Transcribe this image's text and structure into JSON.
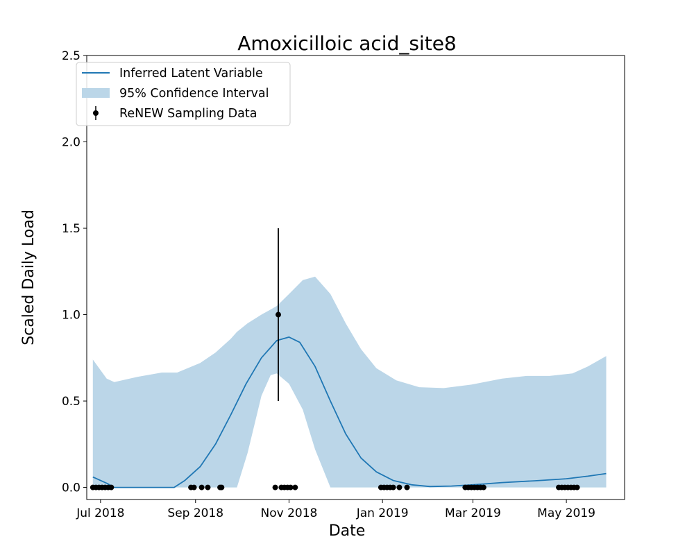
{
  "chart_data": {
    "type": "line",
    "title": "Amoxicilloic acid_site8",
    "xlabel": "Date",
    "ylabel": "Scaled Daily Load",
    "xlim": [
      "2018-06-22",
      "2019-06-08"
    ],
    "ylim": [
      -0.07,
      2.5
    ],
    "x_ticks": [
      {
        "date": "2018-07-01",
        "label": "Jul 2018"
      },
      {
        "date": "2018-09-01",
        "label": "Sep 2018"
      },
      {
        "date": "2018-11-01",
        "label": "Nov 2018"
      },
      {
        "date": "2019-01-01",
        "label": "Jan 2019"
      },
      {
        "date": "2019-03-01",
        "label": "Mar 2019"
      },
      {
        "date": "2019-05-01",
        "label": "May 2019"
      }
    ],
    "y_ticks": [
      {
        "value": 0.0,
        "label": "0.0"
      },
      {
        "value": 0.5,
        "label": "0.5"
      },
      {
        "value": 1.0,
        "label": "1.0"
      },
      {
        "value": 1.5,
        "label": "1.5"
      },
      {
        "value": 2.0,
        "label": "2.0"
      },
      {
        "value": 2.5,
        "label": "2.5"
      }
    ],
    "grid": false,
    "legend_position": "top-left",
    "legend": [
      {
        "label": "Inferred Latent Variable",
        "kind": "line"
      },
      {
        "label": "95% Confidence Interval",
        "kind": "band"
      },
      {
        "label": "ReNEW Sampling Data",
        "kind": "errorbar"
      }
    ],
    "colors": {
      "line": "#1f77b4",
      "band": "#bbd6e8",
      "points": "#000000"
    },
    "series": [
      {
        "name": "Inferred Latent Variable",
        "kind": "line",
        "points": [
          {
            "x": "2018-06-26",
            "y": 0.06
          },
          {
            "x": "2018-07-06",
            "y": 0.02
          },
          {
            "x": "2018-07-10",
            "y": 0.0
          },
          {
            "x": "2018-07-25",
            "y": 0.0
          },
          {
            "x": "2018-08-10",
            "y": 0.0
          },
          {
            "x": "2018-08-18",
            "y": 0.0
          },
          {
            "x": "2018-08-25",
            "y": 0.04
          },
          {
            "x": "2018-09-04",
            "y": 0.12
          },
          {
            "x": "2018-09-14",
            "y": 0.25
          },
          {
            "x": "2018-09-24",
            "y": 0.42
          },
          {
            "x": "2018-10-04",
            "y": 0.6
          },
          {
            "x": "2018-10-14",
            "y": 0.75
          },
          {
            "x": "2018-10-24",
            "y": 0.85
          },
          {
            "x": "2018-11-01",
            "y": 0.87
          },
          {
            "x": "2018-11-08",
            "y": 0.84
          },
          {
            "x": "2018-11-18",
            "y": 0.7
          },
          {
            "x": "2018-11-28",
            "y": 0.5
          },
          {
            "x": "2018-12-08",
            "y": 0.31
          },
          {
            "x": "2018-12-18",
            "y": 0.17
          },
          {
            "x": "2018-12-28",
            "y": 0.09
          },
          {
            "x": "2019-01-08",
            "y": 0.04
          },
          {
            "x": "2019-01-20",
            "y": 0.015
          },
          {
            "x": "2019-02-01",
            "y": 0.005
          },
          {
            "x": "2019-02-15",
            "y": 0.008
          },
          {
            "x": "2019-03-01",
            "y": 0.015
          },
          {
            "x": "2019-03-20",
            "y": 0.028
          },
          {
            "x": "2019-04-10",
            "y": 0.038
          },
          {
            "x": "2019-05-01",
            "y": 0.05
          },
          {
            "x": "2019-05-15",
            "y": 0.065
          },
          {
            "x": "2019-05-27",
            "y": 0.08
          }
        ]
      },
      {
        "name": "95% Confidence Interval",
        "kind": "band",
        "points": [
          {
            "x": "2018-06-26",
            "lower": 0.0,
            "upper": 0.74
          },
          {
            "x": "2018-07-05",
            "lower": 0.0,
            "upper": 0.63
          },
          {
            "x": "2018-07-10",
            "lower": 0.0,
            "upper": 0.61
          },
          {
            "x": "2018-07-25",
            "lower": 0.0,
            "upper": 0.64
          },
          {
            "x": "2018-08-10",
            "lower": 0.0,
            "upper": 0.665
          },
          {
            "x": "2018-08-20",
            "lower": 0.0,
            "upper": 0.665
          },
          {
            "x": "2018-09-04",
            "lower": 0.0,
            "upper": 0.72
          },
          {
            "x": "2018-09-14",
            "lower": 0.0,
            "upper": 0.78
          },
          {
            "x": "2018-09-24",
            "lower": 0.0,
            "upper": 0.86
          },
          {
            "x": "2018-09-28",
            "lower": 0.0,
            "upper": 0.9
          },
          {
            "x": "2018-10-05",
            "lower": 0.2,
            "upper": 0.95
          },
          {
            "x": "2018-10-14",
            "lower": 0.53,
            "upper": 1.0
          },
          {
            "x": "2018-10-20",
            "lower": 0.65,
            "upper": 1.03
          },
          {
            "x": "2018-10-24",
            "lower": 0.66,
            "upper": 1.05
          },
          {
            "x": "2018-11-01",
            "lower": 0.6,
            "upper": 1.12
          },
          {
            "x": "2018-11-10",
            "lower": 0.45,
            "upper": 1.2
          },
          {
            "x": "2018-11-18",
            "lower": 0.22,
            "upper": 1.22
          },
          {
            "x": "2018-11-28",
            "lower": 0.0,
            "upper": 1.12
          },
          {
            "x": "2018-12-08",
            "lower": 0.0,
            "upper": 0.95
          },
          {
            "x": "2018-12-18",
            "lower": 0.0,
            "upper": 0.8
          },
          {
            "x": "2018-12-28",
            "lower": 0.0,
            "upper": 0.69
          },
          {
            "x": "2019-01-10",
            "lower": 0.0,
            "upper": 0.62
          },
          {
            "x": "2019-01-25",
            "lower": 0.0,
            "upper": 0.58
          },
          {
            "x": "2019-02-10",
            "lower": 0.0,
            "upper": 0.575
          },
          {
            "x": "2019-02-28",
            "lower": 0.0,
            "upper": 0.595
          },
          {
            "x": "2019-03-20",
            "lower": 0.0,
            "upper": 0.63
          },
          {
            "x": "2019-04-05",
            "lower": 0.0,
            "upper": 0.645
          },
          {
            "x": "2019-04-20",
            "lower": 0.0,
            "upper": 0.645
          },
          {
            "x": "2019-05-05",
            "lower": 0.0,
            "upper": 0.66
          },
          {
            "x": "2019-05-15",
            "lower": 0.0,
            "upper": 0.7
          },
          {
            "x": "2019-05-27",
            "lower": 0.0,
            "upper": 0.76
          }
        ]
      },
      {
        "name": "ReNEW Sampling Data",
        "kind": "errorbar",
        "points": [
          {
            "x": "2018-06-26",
            "y": 0.0
          },
          {
            "x": "2018-06-28",
            "y": 0.0
          },
          {
            "x": "2018-06-30",
            "y": 0.0
          },
          {
            "x": "2018-07-02",
            "y": 0.0
          },
          {
            "x": "2018-07-04",
            "y": 0.0
          },
          {
            "x": "2018-07-06",
            "y": 0.0
          },
          {
            "x": "2018-07-08",
            "y": 0.0
          },
          {
            "x": "2018-08-29",
            "y": 0.0
          },
          {
            "x": "2018-08-31",
            "y": 0.0
          },
          {
            "x": "2018-09-05",
            "y": 0.0
          },
          {
            "x": "2018-09-09",
            "y": 0.0
          },
          {
            "x": "2018-09-17",
            "y": 0.0
          },
          {
            "x": "2018-09-18",
            "y": 0.0
          },
          {
            "x": "2018-10-23",
            "y": 0.0
          },
          {
            "x": "2018-10-25",
            "y": 1.0,
            "err_low": 0.5,
            "err_high": 1.5
          },
          {
            "x": "2018-10-27",
            "y": 0.0
          },
          {
            "x": "2018-10-29",
            "y": 0.0
          },
          {
            "x": "2018-10-31",
            "y": 0.0
          },
          {
            "x": "2018-11-02",
            "y": 0.0
          },
          {
            "x": "2018-11-05",
            "y": 0.0
          },
          {
            "x": "2018-12-31",
            "y": 0.0
          },
          {
            "x": "2019-01-02",
            "y": 0.0
          },
          {
            "x": "2019-01-04",
            "y": 0.0
          },
          {
            "x": "2019-01-06",
            "y": 0.0
          },
          {
            "x": "2019-01-08",
            "y": 0.0
          },
          {
            "x": "2019-01-12",
            "y": 0.0
          },
          {
            "x": "2019-01-17",
            "y": 0.0
          },
          {
            "x": "2019-02-24",
            "y": 0.0
          },
          {
            "x": "2019-02-26",
            "y": 0.0
          },
          {
            "x": "2019-02-28",
            "y": 0.0
          },
          {
            "x": "2019-03-02",
            "y": 0.0
          },
          {
            "x": "2019-03-04",
            "y": 0.0
          },
          {
            "x": "2019-03-06",
            "y": 0.0
          },
          {
            "x": "2019-03-08",
            "y": 0.0
          },
          {
            "x": "2019-04-26",
            "y": 0.0
          },
          {
            "x": "2019-04-28",
            "y": 0.0
          },
          {
            "x": "2019-04-30",
            "y": 0.0
          },
          {
            "x": "2019-05-02",
            "y": 0.0
          },
          {
            "x": "2019-05-04",
            "y": 0.0
          },
          {
            "x": "2019-05-06",
            "y": 0.0
          },
          {
            "x": "2019-05-08",
            "y": 0.0
          }
        ]
      }
    ]
  }
}
